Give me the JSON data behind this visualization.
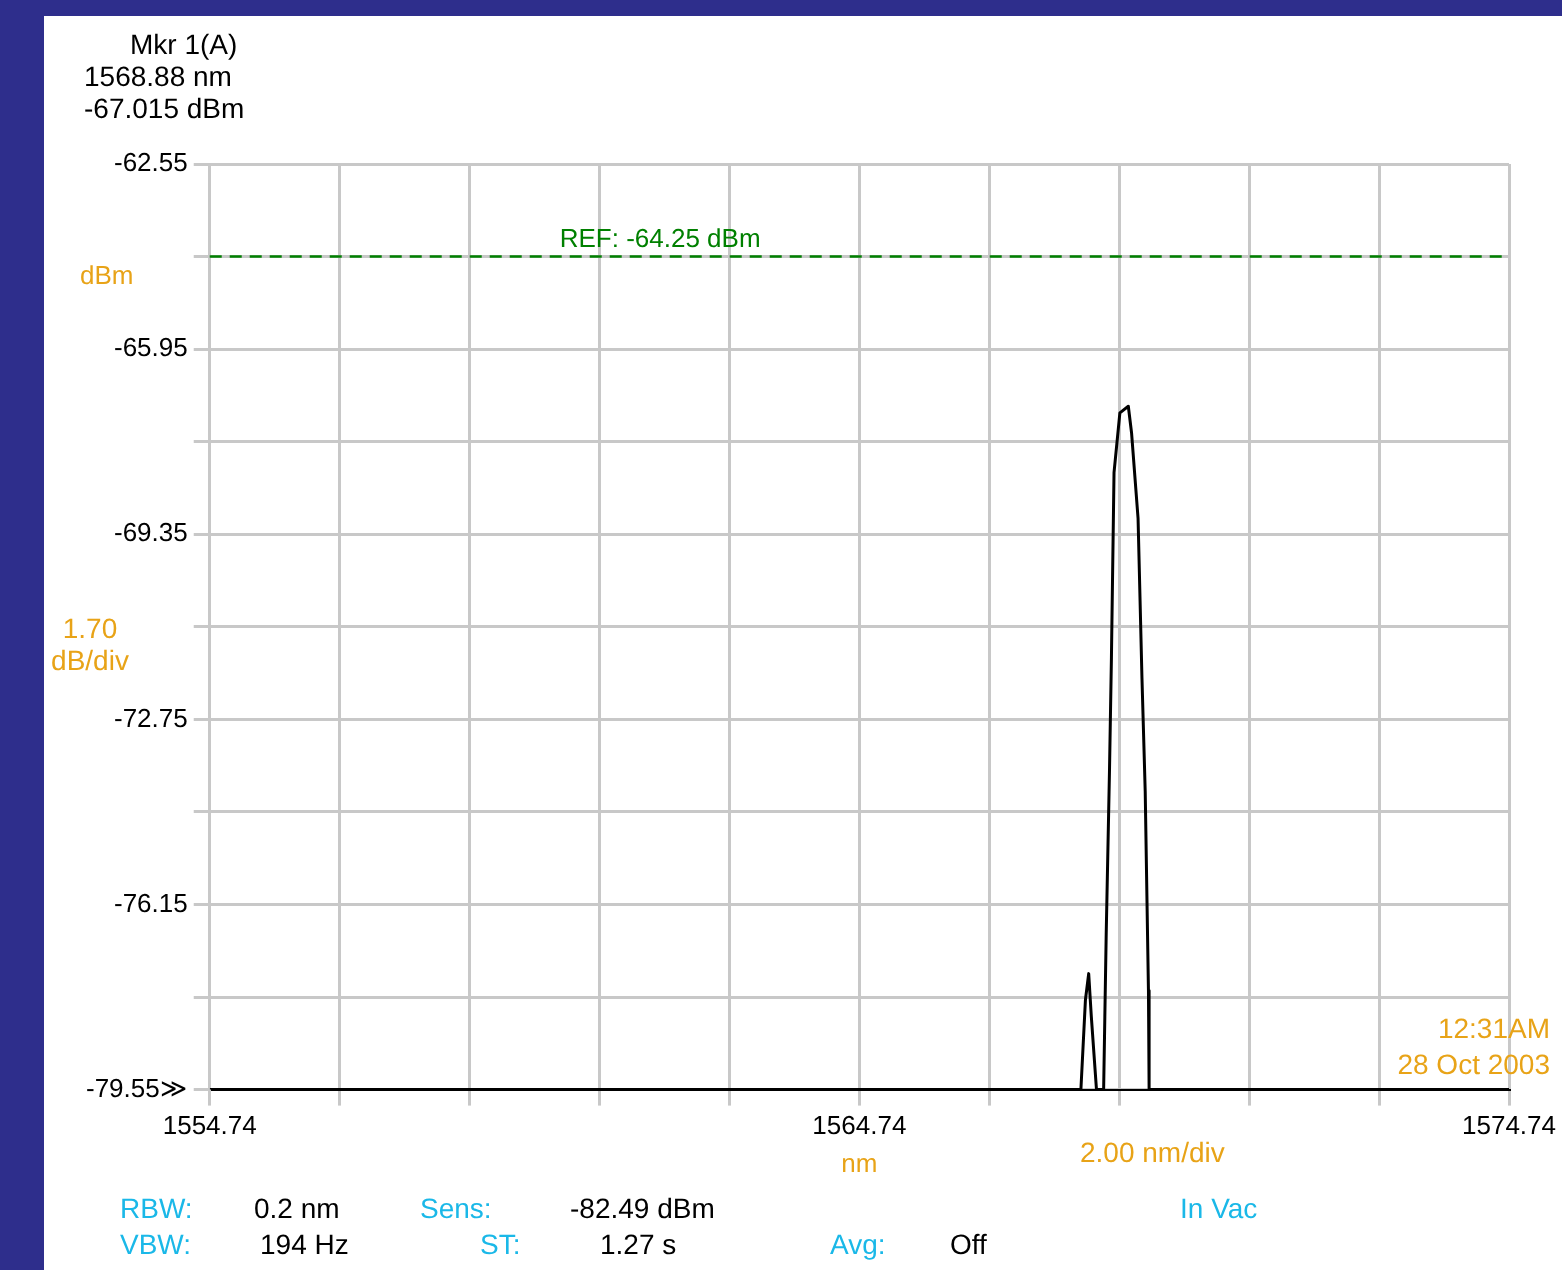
{
  "chart_data": {
    "type": "line",
    "xlabel": "nm",
    "ylabel": "dBm",
    "x": [
      1554.74,
      1568.15,
      1568.22,
      1568.27,
      1568.31,
      1568.39,
      1568.5,
      1568.54,
      1568.59,
      1568.62,
      1568.66,
      1568.75,
      1568.88,
      1568.93,
      1569.03,
      1569.09,
      1569.14,
      1569.19,
      1569.2,
      1574.74
    ],
    "series": [
      {
        "color": "#000000",
        "values": [
          -79.55,
          -79.55,
          -77.9,
          -77.42,
          -78.2,
          -79.55,
          -79.55,
          -76.67,
          -73.7,
          -71.62,
          -68.22,
          -67.12,
          -67.0,
          -67.49,
          -69.06,
          -71.99,
          -74.07,
          -77.73,
          -79.55,
          -79.55
        ]
      }
    ],
    "xlim": [
      1554.74,
      1574.74
    ],
    "xticks": [
      1554.74,
      {
        "value": 1556.74,
        "label": null
      },
      {
        "value": 1558.74,
        "label": null
      },
      {
        "value": 1560.74,
        "label": null
      },
      {
        "value": 1562.74,
        "label": null
      },
      1564.74,
      {
        "value": 1566.74,
        "label": null
      },
      {
        "value": 1568.74,
        "label": null
      },
      {
        "value": 1570.74,
        "label": null
      },
      {
        "value": 1572.74,
        "label": null
      },
      1574.74
    ],
    "ylim": [
      -79.55,
      -62.55
    ],
    "yticks": [
      -62.55,
      {
        "value": -64.25,
        "label": null
      },
      -65.95,
      {
        "value": -67.65,
        "label": null
      },
      -69.35,
      {
        "value": -71.05,
        "label": null
      },
      -72.75,
      {
        "value": -74.45,
        "label": null
      },
      -76.15,
      {
        "value": -77.85,
        "label": null
      },
      {
        "value": -79.55,
        "label": "-79.55≫"
      }
    ],
    "ref_lines": [
      {
        "axis": "y",
        "value": -64.25,
        "label": "REF: -64.25 dBm",
        "color": "#008000",
        "line_style": "dashed"
      }
    ],
    "grid": true,
    "legend": false,
    "marker": "none",
    "line_style": "solid",
    "annotations": [
      "Mkr 1(A)",
      "1568.88 nm",
      "-67.015 dBm",
      "1.70 dB/div",
      "2.00 nm/div",
      "12:31AM",
      "28 Oct 2003",
      "RBW:",
      "0.2 nm",
      "Sens:",
      "-82.49 dBm",
      "In Vac",
      "VBW:",
      "194 Hz",
      "ST:",
      "1.27 s",
      "Avg:",
      "Off"
    ]
  }
}
